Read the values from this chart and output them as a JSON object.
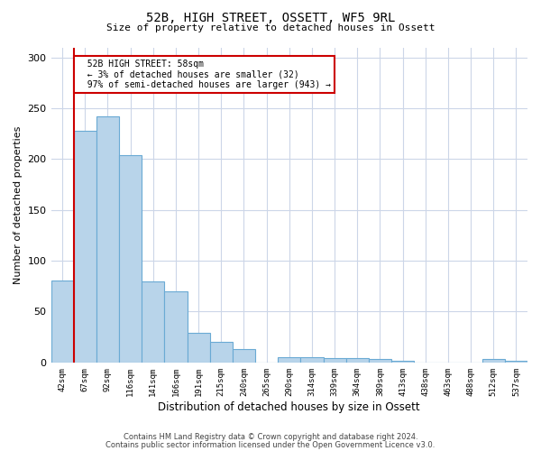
{
  "title1": "52B, HIGH STREET, OSSETT, WF5 9RL",
  "title2": "Size of property relative to detached houses in Ossett",
  "xlabel": "Distribution of detached houses by size in Ossett",
  "ylabel": "Number of detached properties",
  "categories": [
    "42sqm",
    "67sqm",
    "92sqm",
    "116sqm",
    "141sqm",
    "166sqm",
    "191sqm",
    "215sqm",
    "240sqm",
    "265sqm",
    "290sqm",
    "314sqm",
    "339sqm",
    "364sqm",
    "389sqm",
    "413sqm",
    "438sqm",
    "463sqm",
    "488sqm",
    "512sqm",
    "537sqm"
  ],
  "values": [
    81,
    228,
    242,
    204,
    80,
    70,
    29,
    20,
    13,
    0,
    5,
    5,
    4,
    4,
    3,
    2,
    0,
    0,
    0,
    3,
    2
  ],
  "bar_color": "#b8d4ea",
  "bar_edge_color": "#6aaad4",
  "annotation_title": "52B HIGH STREET: 58sqm",
  "annotation_line1": "← 3% of detached houses are smaller (32)",
  "annotation_line2": "97% of semi-detached houses are larger (943) →",
  "annotation_box_color": "#ffffff",
  "annotation_border_color": "#cc0000",
  "vline_color": "#cc0000",
  "ylim": [
    0,
    310
  ],
  "yticks": [
    0,
    50,
    100,
    150,
    200,
    250,
    300
  ],
  "footer1": "Contains HM Land Registry data © Crown copyright and database right 2024.",
  "footer2": "Contains public sector information licensed under the Open Government Licence v3.0.",
  "bg_color": "#ffffff",
  "grid_color": "#ccd6e8"
}
